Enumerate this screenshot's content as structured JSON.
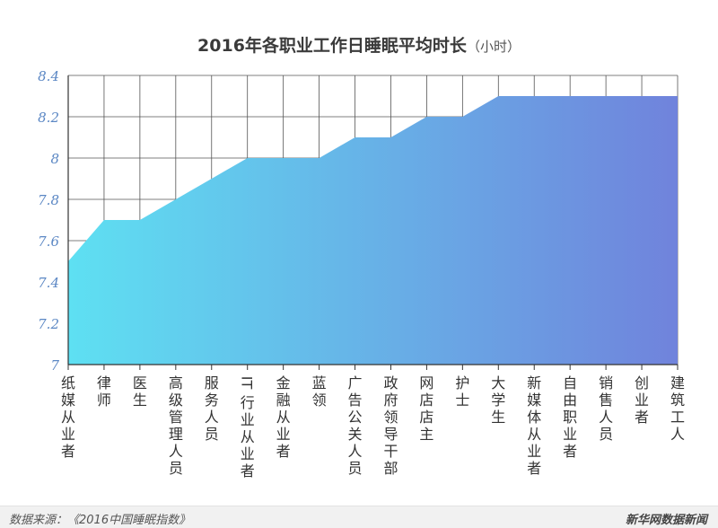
{
  "chart_data": {
    "type": "area",
    "title": "2016年各职业工作日睡眠平均时长",
    "unit": "（小时）",
    "xlabel": "",
    "ylabel": "",
    "ylim": [
      7,
      8.4
    ],
    "yticks": [
      "7",
      "7.2",
      "7.4",
      "7.6",
      "7.8",
      "8",
      "8.2",
      "8.4"
    ],
    "grid": true,
    "gradient": [
      "#5ee0f2",
      "#7083dc"
    ],
    "categories": [
      "纸媒从业者",
      "律师",
      "医生",
      "高级管理人员",
      "服务人员",
      "IT行业从业者",
      "金融从业者",
      "蓝领",
      "广告公关人员",
      "政府领导干部",
      "网店店主",
      "护士",
      "大学生",
      "新媒体从业者",
      "自由职业者",
      "销售人员",
      "创业者",
      "建筑工人"
    ],
    "values": [
      7.5,
      7.7,
      7.7,
      7.8,
      7.9,
      8.0,
      8.0,
      8.0,
      8.1,
      8.1,
      8.2,
      8.2,
      8.3,
      8.3,
      8.3,
      8.3,
      8.3,
      8.3
    ]
  },
  "footer": {
    "source": "数据来源：《2016中国睡眠指数》",
    "brand": "新华网数据新闻"
  }
}
